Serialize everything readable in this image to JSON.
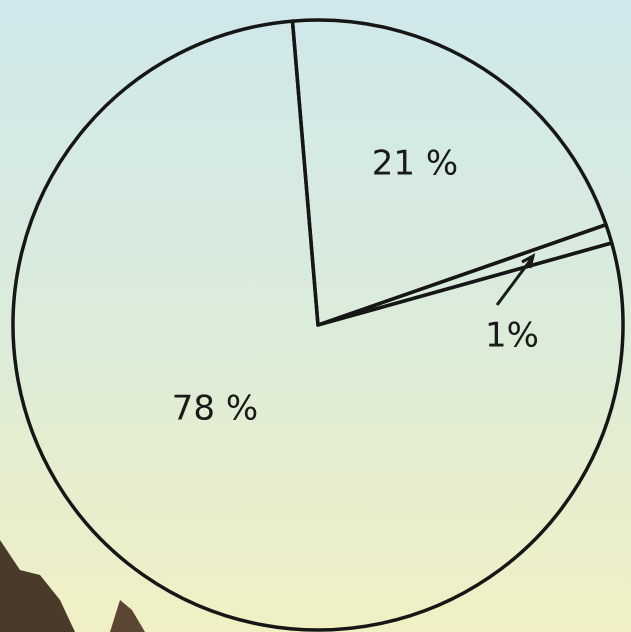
{
  "chart_data": {
    "type": "pie",
    "categories": [
      null,
      null,
      null
    ],
    "values": [
      21,
      1,
      78
    ],
    "value_labels": [
      "21 %",
      "1%",
      "78 %"
    ]
  }
}
